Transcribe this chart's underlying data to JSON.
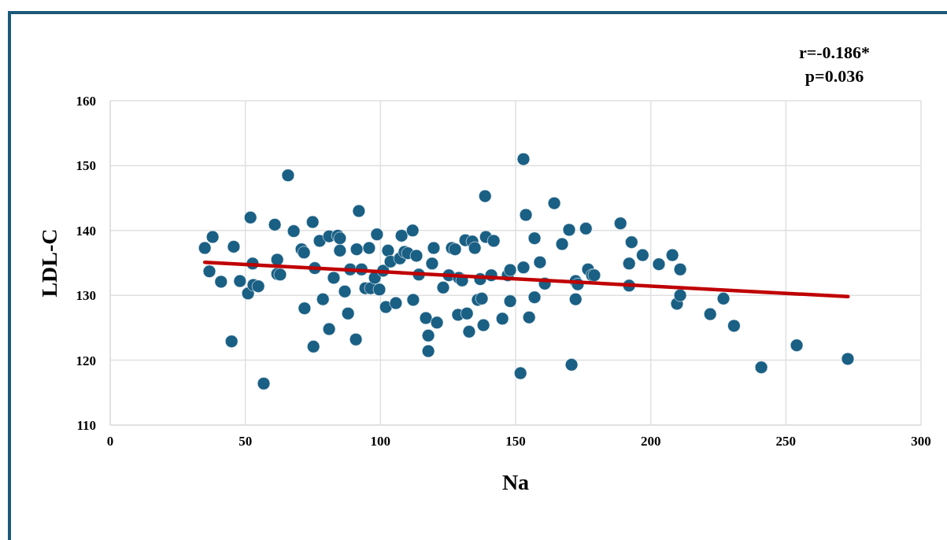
{
  "chart_data": {
    "type": "scatter",
    "xlabel": "Na",
    "ylabel": "LDL-C",
    "annotations": [
      "r=-0.186*",
      "p=0.036"
    ],
    "xlim": [
      0,
      300
    ],
    "xticks": [
      0,
      50,
      100,
      150,
      200,
      250,
      300
    ],
    "ylim": [
      110,
      160
    ],
    "yticks": [
      110,
      120,
      130,
      140,
      150,
      160
    ],
    "grid": true,
    "marker": "circle",
    "series": [
      {
        "color": "#1a5f84",
        "x": [
          35,
          36.7,
          37.9,
          41,
          44.9,
          45.7,
          48,
          51,
          51.9,
          52.7,
          53,
          54.8,
          56.8,
          60.9,
          61.8,
          61.8,
          62.9,
          65.8,
          67.9,
          70.8,
          71.7,
          71.9,
          74.9,
          75.2,
          75.7,
          77.5,
          78.7,
          81,
          81,
          82.7,
          84.2,
          85,
          85,
          86.8,
          88,
          88.8,
          90.9,
          91.2,
          92,
          93,
          94.4,
          95.8,
          96.4,
          97.9,
          98.7,
          99.6,
          101,
          102,
          102.8,
          103.7,
          105.7,
          107.2,
          107.8,
          108.9,
          110.1,
          111.9,
          112.1,
          113.3,
          114.2,
          116.8,
          117.7,
          117.7,
          119.1,
          119.7,
          120.9,
          123.2,
          125.3,
          126.4,
          127.6,
          128.7,
          129,
          130.2,
          131.4,
          132,
          132.8,
          134,
          134.9,
          136,
          136.9,
          137.5,
          138.1,
          138.7,
          139,
          141,
          141.9,
          145.1,
          147.1,
          148,
          148,
          151.8,
          152.9,
          152.9,
          153.8,
          155,
          157,
          157,
          159,
          160.8,
          164.3,
          167.2,
          169.8,
          170.7,
          172.2,
          172.2,
          173,
          176,
          176.8,
          178.3,
          179.1,
          188.8,
          192,
          192,
          192.9,
          197,
          203,
          208,
          209.7,
          210.9,
          210.9,
          222,
          226.9,
          230.8,
          240.9,
          254,
          272.9
        ],
        "values": [
          137.3,
          133.7,
          139,
          132.1,
          122.9,
          137.5,
          132.2,
          130.3,
          142,
          134.9,
          131.6,
          131.4,
          116.4,
          140.9,
          135.5,
          133.3,
          133.2,
          148.5,
          139.9,
          137.1,
          136.6,
          128,
          141.3,
          122.1,
          134.2,
          138.4,
          129.4,
          124.8,
          139.1,
          132.7,
          139.2,
          138.8,
          136.9,
          130.6,
          127.2,
          134,
          123.2,
          137.1,
          143,
          134,
          131.1,
          137.3,
          131.1,
          132.7,
          139.4,
          130.9,
          133.8,
          128.2,
          136.9,
          135.2,
          128.8,
          135.7,
          139.2,
          136.7,
          136.5,
          140,
          129.3,
          136.1,
          133.2,
          126.5,
          121.4,
          123.8,
          134.9,
          137.3,
          125.8,
          131.2,
          133.1,
          137.3,
          137.1,
          127,
          132.7,
          132.3,
          138.5,
          127.2,
          124.4,
          138.3,
          137.3,
          129.3,
          132.5,
          129.5,
          125.4,
          145.3,
          139,
          133.1,
          138.4,
          126.4,
          133.1,
          129.1,
          133.9,
          118,
          151,
          134.3,
          142.4,
          126.6,
          138.8,
          129.7,
          135.1,
          131.8,
          144.2,
          137.9,
          140.1,
          119.3,
          132.2,
          129.4,
          131.7,
          140.3,
          134,
          133.1,
          133.1,
          141.1,
          134.9,
          131.5,
          138.2,
          136.2,
          134.8,
          136.2,
          128.7,
          134,
          130,
          127.1,
          129.5,
          125.3,
          118.9,
          122.3,
          120.2
        ]
      },
      {
        "type": "line",
        "color": "#c00000",
        "marker": "none",
        "x": [
          35,
          273
        ],
        "values": [
          135.1,
          129.8
        ]
      }
    ]
  }
}
